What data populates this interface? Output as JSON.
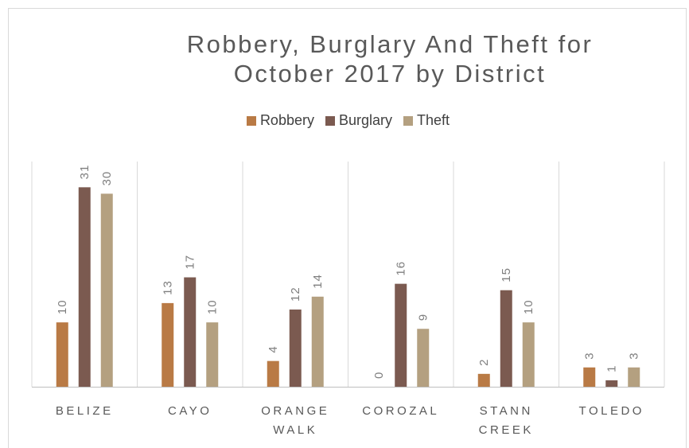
{
  "chart_data": {
    "type": "bar",
    "title": "Robbery, Burglary And Theft for October 2017 by District",
    "categories": [
      "BELIZE",
      "CAYO",
      "ORANGE WALK",
      "COROZAL",
      "STANN CREEK",
      "TOLEDO"
    ],
    "series": [
      {
        "name": "Robbery",
        "color": "#b97a45",
        "values": [
          10,
          13,
          4,
          0,
          2,
          3
        ]
      },
      {
        "name": "Burglary",
        "color": "#7b5a50",
        "values": [
          31,
          17,
          12,
          16,
          15,
          1
        ]
      },
      {
        "name": "Theft",
        "color": "#b4a080",
        "values": [
          30,
          10,
          14,
          9,
          10,
          3
        ]
      }
    ],
    "ylim": [
      0,
      35
    ],
    "legend": "top"
  }
}
